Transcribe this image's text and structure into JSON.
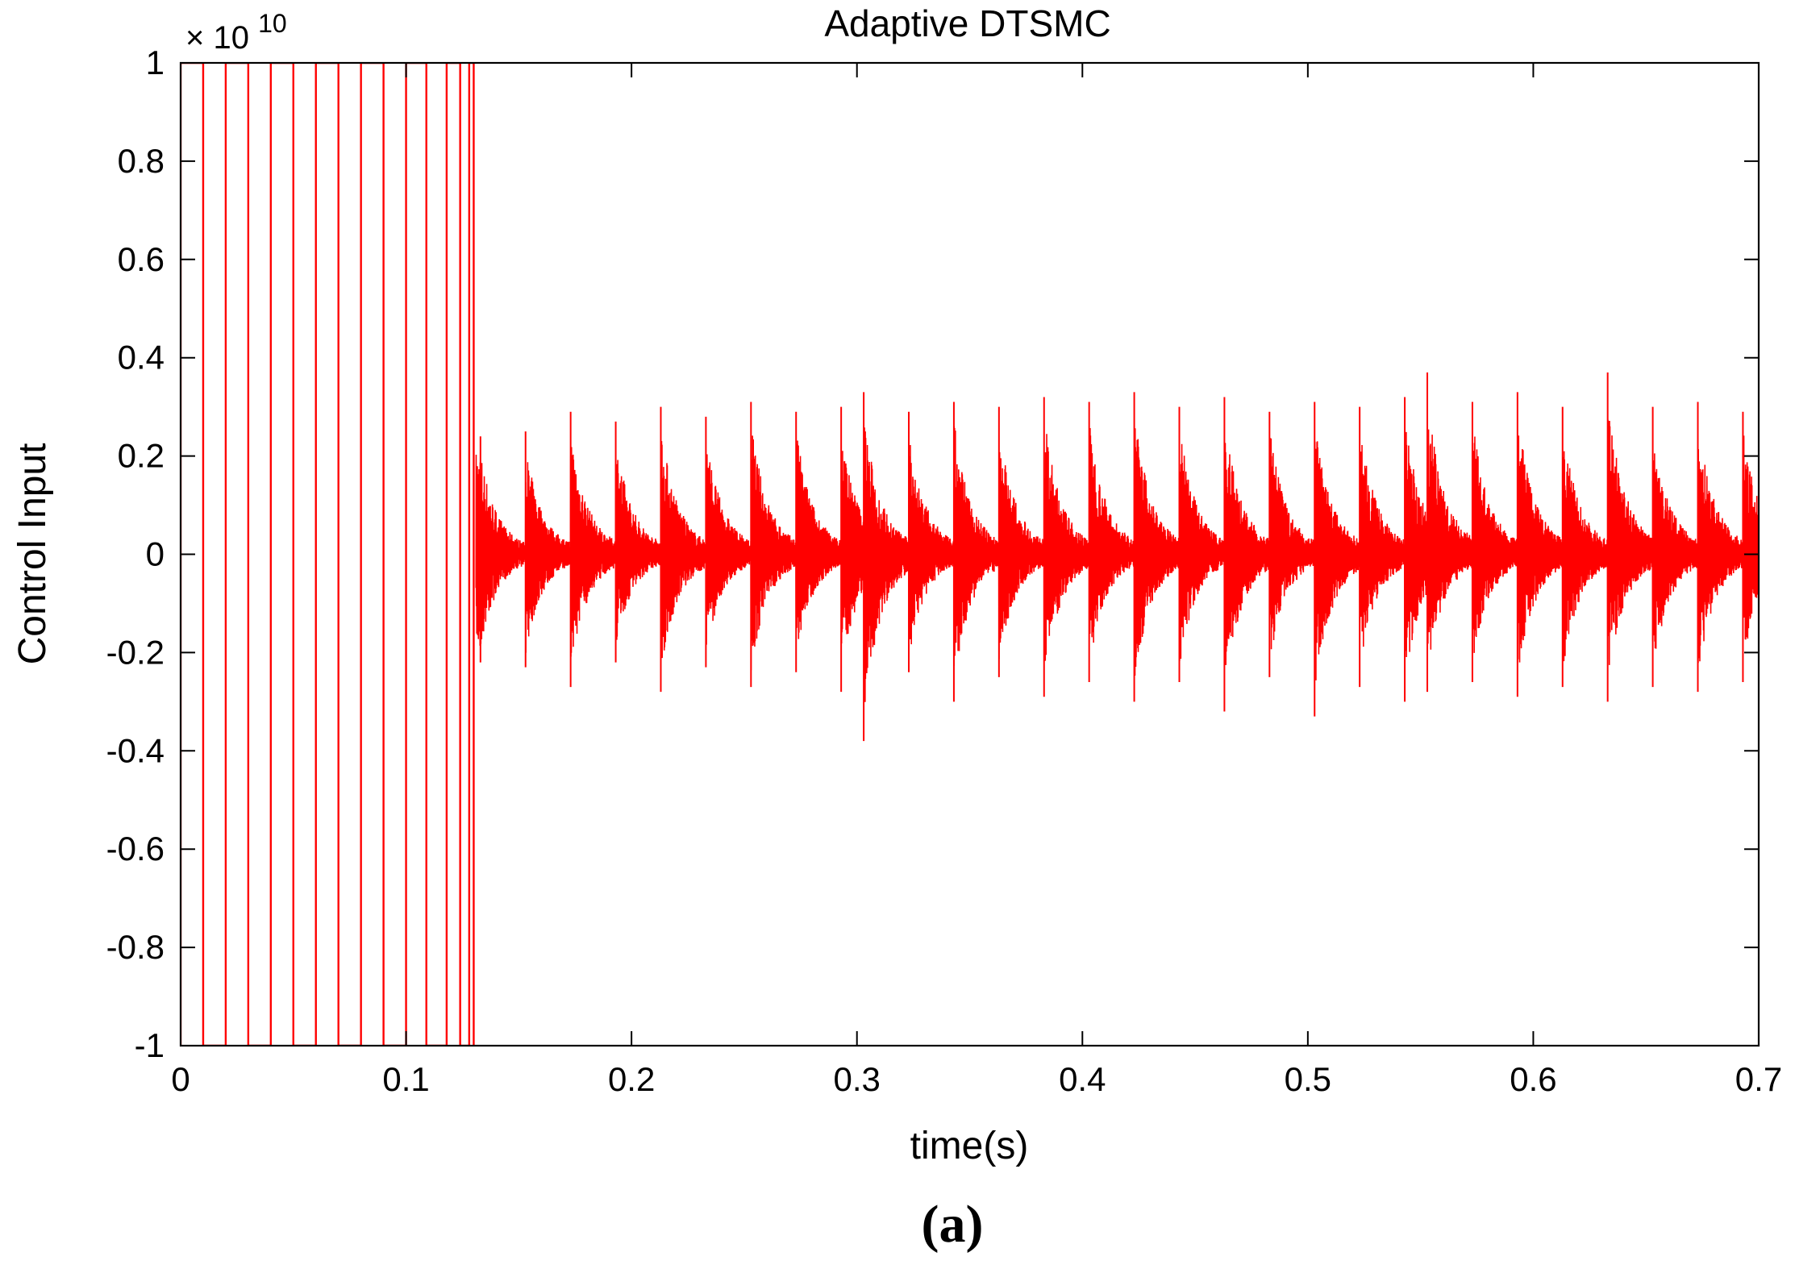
{
  "caption": "(a)",
  "chart_data": {
    "type": "line",
    "title": "Adaptive DTSMC",
    "xlabel": "time(s)",
    "ylabel": "Control Input",
    "exponent_label": "× 10",
    "exponent_power": "10",
    "xlim": [
      0,
      0.7
    ],
    "ylim": [
      -1,
      1
    ],
    "y_scale_factor": 10000000000.0,
    "xticks": [
      "0",
      "0.1",
      "0.2",
      "0.3",
      "0.4",
      "0.5",
      "0.6",
      "0.7"
    ],
    "xtick_values": [
      0,
      0.1,
      0.2,
      0.3,
      0.4,
      0.5,
      0.6,
      0.7
    ],
    "yticks": [
      "-1",
      "-0.8",
      "-0.6",
      "-0.4",
      "-0.2",
      "0",
      "0.2",
      "0.4",
      "0.6",
      "0.8",
      "1"
    ],
    "ytick_values": [
      -1,
      -0.8,
      -0.6,
      -0.4,
      -0.2,
      0,
      0.2,
      0.4,
      0.6,
      0.8,
      1
    ],
    "grid": false,
    "series": [
      {
        "color": "#ff0000",
        "saturated_switching_times": [
          0,
          0.01,
          0.02,
          0.03,
          0.04,
          0.05,
          0.06,
          0.07,
          0.08,
          0.09,
          0.1,
          0.109,
          0.118,
          0.124,
          0.128,
          0.13
        ],
        "transition_time": 0.131,
        "oscillation_peaks": [
          {
            "t": 0.133,
            "max": 0.24,
            "min": -0.22
          },
          {
            "t": 0.153,
            "max": 0.25,
            "min": -0.23
          },
          {
            "t": 0.173,
            "max": 0.29,
            "min": -0.27
          },
          {
            "t": 0.193,
            "max": 0.27,
            "min": -0.22
          },
          {
            "t": 0.213,
            "max": 0.3,
            "min": -0.28
          },
          {
            "t": 0.233,
            "max": 0.28,
            "min": -0.23
          },
          {
            "t": 0.253,
            "max": 0.31,
            "min": -0.27
          },
          {
            "t": 0.273,
            "max": 0.29,
            "min": -0.24
          },
          {
            "t": 0.293,
            "max": 0.3,
            "min": -0.28
          },
          {
            "t": 0.303,
            "max": 0.33,
            "min": -0.38
          },
          {
            "t": 0.323,
            "max": 0.29,
            "min": -0.24
          },
          {
            "t": 0.343,
            "max": 0.31,
            "min": -0.3
          },
          {
            "t": 0.363,
            "max": 0.3,
            "min": -0.25
          },
          {
            "t": 0.383,
            "max": 0.32,
            "min": -0.29
          },
          {
            "t": 0.403,
            "max": 0.31,
            "min": -0.26
          },
          {
            "t": 0.423,
            "max": 0.33,
            "min": -0.3
          },
          {
            "t": 0.443,
            "max": 0.3,
            "min": -0.26
          },
          {
            "t": 0.463,
            "max": 0.32,
            "min": -0.32
          },
          {
            "t": 0.483,
            "max": 0.29,
            "min": -0.25
          },
          {
            "t": 0.503,
            "max": 0.31,
            "min": -0.33
          },
          {
            "t": 0.523,
            "max": 0.3,
            "min": -0.27
          },
          {
            "t": 0.543,
            "max": 0.32,
            "min": -0.3
          },
          {
            "t": 0.553,
            "max": 0.37,
            "min": -0.28
          },
          {
            "t": 0.573,
            "max": 0.31,
            "min": -0.26
          },
          {
            "t": 0.593,
            "max": 0.33,
            "min": -0.29
          },
          {
            "t": 0.613,
            "max": 0.3,
            "min": -0.27
          },
          {
            "t": 0.633,
            "max": 0.37,
            "min": -0.3
          },
          {
            "t": 0.653,
            "max": 0.3,
            "min": -0.27
          },
          {
            "t": 0.673,
            "max": 0.31,
            "min": -0.28
          },
          {
            "t": 0.693,
            "max": 0.29,
            "min": -0.26
          }
        ]
      }
    ]
  }
}
